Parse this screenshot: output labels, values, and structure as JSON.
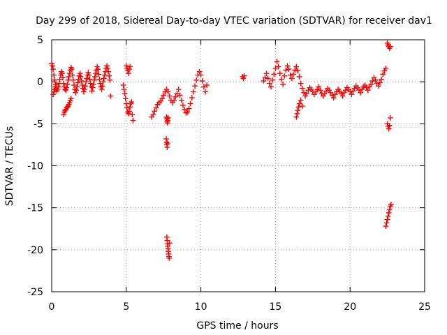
{
  "chart_data": {
    "type": "scatter",
    "title": "Day 299 of 2018, Sidereal Day-to-day VTEC variation (SDTVAR) for receiver dav1",
    "xlabel": "GPS time / hours",
    "ylabel": "SDTVAR / TECUs",
    "xlim": [
      0,
      25
    ],
    "ylim": [
      -25,
      5
    ],
    "x_ticks": [
      "0",
      "5",
      "10",
      "15",
      "20",
      "25"
    ],
    "y_ticks": [
      "5",
      "0",
      "-5",
      "-10",
      "-15",
      "-20",
      "-25"
    ],
    "grid": true,
    "legend": "none",
    "marker": "+",
    "series_color": "#ff0000",
    "series": [
      {
        "name": "SDTVAR",
        "x": [
          0.0,
          0.05,
          0.1,
          0.15,
          0.2,
          0.25,
          0.3,
          0.35,
          0.4,
          0.45,
          0.5,
          0.55,
          0.6,
          0.65,
          0.7,
          0.75,
          0.8,
          0.85,
          0.9,
          0.95,
          1.0,
          1.05,
          1.1,
          1.15,
          1.2,
          1.25,
          1.3,
          1.35,
          1.4,
          1.45,
          1.5,
          1.55,
          1.6,
          1.65,
          1.7,
          1.75,
          1.8,
          1.85,
          1.9,
          1.95,
          2.0,
          2.05,
          2.1,
          2.15,
          2.2,
          2.25,
          2.3,
          2.35,
          2.4,
          2.45,
          2.5,
          2.55,
          2.6,
          2.65,
          2.7,
          2.75,
          2.8,
          2.85,
          2.9,
          2.95,
          3.0,
          3.05,
          3.1,
          3.15,
          3.2,
          3.25,
          3.3,
          3.35,
          3.4,
          3.45,
          3.5,
          3.55,
          3.6,
          3.65,
          3.7,
          3.75,
          3.8,
          3.85,
          3.9,
          3.95,
          0.1,
          0.15,
          0.2,
          0.25,
          0.3,
          0.8,
          0.85,
          0.9,
          0.95,
          1.0,
          1.05,
          1.1,
          1.15,
          1.2,
          1.25,
          1.3,
          4.8,
          4.85,
          4.9,
          4.95,
          5.0,
          5.05,
          5.1,
          5.15,
          5.2,
          5.25,
          5.3,
          5.35,
          5.4,
          5.45,
          5.0,
          5.05,
          5.1,
          5.15,
          5.2,
          5.25,
          6.7,
          6.8,
          6.9,
          7.0,
          7.1,
          7.2,
          7.3,
          7.4,
          7.5,
          7.6,
          7.7,
          7.8,
          7.9,
          8.0,
          8.1,
          8.2,
          8.3,
          8.4,
          8.5,
          8.6,
          8.7,
          8.8,
          8.9,
          9.0,
          9.1,
          9.2,
          9.3,
          9.4,
          9.5,
          9.6,
          9.7,
          9.8,
          9.9,
          10.0,
          10.1,
          10.2,
          10.3,
          10.4,
          7.7,
          7.72,
          7.74,
          7.76,
          7.78,
          7.8,
          7.68,
          7.7,
          7.72,
          7.74,
          7.76,
          7.72,
          7.74,
          7.76,
          7.78,
          7.8,
          7.82,
          7.84,
          7.86,
          7.88,
          7.9,
          12.8,
          12.85,
          12.9,
          14.2,
          14.3,
          14.4,
          14.5,
          14.6,
          14.7,
          14.8,
          14.9,
          15.0,
          15.1,
          15.2,
          15.3,
          15.4,
          15.5,
          15.6,
          15.7,
          15.8,
          15.9,
          16.0,
          16.1,
          16.2,
          16.3,
          16.4,
          16.5,
          16.6,
          16.7,
          16.8,
          16.9,
          17.0,
          17.1,
          17.2,
          17.3,
          17.4,
          17.5,
          17.6,
          17.7,
          17.8,
          17.9,
          18.0,
          18.1,
          18.2,
          18.3,
          18.4,
          18.5,
          18.6,
          18.7,
          18.8,
          18.9,
          19.0,
          19.1,
          19.2,
          19.3,
          19.4,
          19.5,
          19.6,
          19.7,
          19.8,
          19.9,
          20.0,
          20.1,
          20.2,
          20.3,
          20.4,
          20.5,
          20.6,
          20.7,
          20.8,
          20.9,
          21.0,
          21.1,
          21.2,
          21.3,
          21.4,
          21.5,
          21.6,
          21.7,
          21.8,
          21.9,
          22.0,
          22.1,
          22.2,
          22.3,
          22.4,
          16.4,
          16.45,
          16.5,
          16.55,
          16.6,
          16.7,
          16.8,
          22.5,
          22.55,
          22.6,
          22.65,
          22.7,
          22.5,
          22.55,
          22.6,
          22.65,
          22.7,
          22.4,
          22.45,
          22.5,
          22.55,
          22.6,
          22.65,
          22.7,
          22.75
        ],
        "y": [
          2.2,
          1.9,
          1.5,
          0.8,
          0.2,
          -0.3,
          -0.8,
          -1.1,
          -0.9,
          -0.6,
          -0.2,
          0.3,
          0.8,
          1.2,
          1.0,
          0.5,
          -0.2,
          -0.6,
          -0.9,
          -1.0,
          -0.7,
          -0.3,
          0.2,
          0.6,
          1.0,
          1.4,
          1.7,
          1.5,
          0.8,
          0.2,
          -0.4,
          -0.9,
          -1.3,
          -1.0,
          -0.6,
          -0.1,
          0.3,
          0.7,
          1.0,
          0.6,
          0.1,
          -0.4,
          -0.8,
          -1.2,
          -0.9,
          -0.5,
          0.0,
          0.4,
          0.8,
          1.1,
          0.8,
          0.3,
          -0.2,
          -0.6,
          -1.1,
          -0.7,
          -0.3,
          0.2,
          0.6,
          1.0,
          1.4,
          1.8,
          1.5,
          0.9,
          0.3,
          -0.2,
          -0.6,
          -0.9,
          -0.5,
          0.0,
          0.4,
          0.8,
          1.2,
          1.6,
          1.9,
          1.6,
          1.2,
          0.7,
          0.2,
          -1.7,
          -1.5,
          -1.2,
          -0.9,
          -0.6,
          -0.3,
          -3.9,
          -3.6,
          -3.4,
          -3.3,
          -3.1,
          -3.0,
          -2.9,
          -2.7,
          -2.5,
          -2.2,
          -2.0,
          -0.4,
          -0.9,
          -1.4,
          -2.0,
          -2.6,
          -3.1,
          -3.6,
          -3.8,
          -3.5,
          -3.0,
          -2.6,
          -2.4,
          -3.9,
          -4.6,
          1.9,
          1.6,
          1.3,
          1.0,
          1.5,
          1.8,
          -4.2,
          -3.9,
          -3.5,
          -3.1,
          -2.7,
          -2.5,
          -2.3,
          -2.0,
          -1.6,
          -1.2,
          -0.9,
          -1.2,
          -1.7,
          -2.2,
          -2.5,
          -2.2,
          -1.8,
          -1.4,
          -0.9,
          -1.6,
          -2.2,
          -2.8,
          -3.3,
          -3.7,
          -3.6,
          -3.2,
          -2.6,
          -1.9,
          -1.2,
          -0.5,
          0.2,
          0.8,
          1.2,
          0.8,
          0.1,
          -0.6,
          -1.2,
          -0.4,
          -4.2,
          -4.4,
          -4.7,
          -4.9,
          -4.6,
          -4.3,
          -6.8,
          -7.2,
          -7.5,
          -7.8,
          -7.3,
          -18.5,
          -18.9,
          -19.3,
          -19.6,
          -19.9,
          -20.2,
          -20.5,
          -20.8,
          -21.0,
          -19.2,
          0.6,
          0.4,
          0.7,
          0.1,
          0.5,
          1.0,
          0.4,
          -0.2,
          -0.6,
          0.2,
          0.9,
          1.6,
          2.4,
          1.8,
          1.0,
          0.3,
          -0.3,
          0.7,
          1.4,
          1.9,
          1.5,
          0.8,
          0.4,
          0.9,
          1.4,
          1.8,
          1.3,
          0.6,
          -0.2,
          -0.8,
          -1.3,
          -1.7,
          -1.4,
          -1.0,
          -0.7,
          -0.9,
          -1.2,
          -1.5,
          -1.2,
          -0.9,
          -0.6,
          -1.0,
          -1.4,
          -1.7,
          -1.4,
          -1.1,
          -0.8,
          -1.0,
          -1.3,
          -1.6,
          -1.9,
          -1.5,
          -1.2,
          -0.9,
          -1.1,
          -1.4,
          -1.7,
          -1.3,
          -1.0,
          -0.7,
          -0.9,
          -1.2,
          -1.5,
          -1.1,
          -0.8,
          -0.5,
          -0.7,
          -1.0,
          -1.3,
          -0.9,
          -0.6,
          -0.4,
          -0.7,
          -1.0,
          -0.6,
          -0.3,
          0.1,
          0.5,
          0.2,
          -0.2,
          -0.5,
          -0.1,
          0.3,
          0.9,
          1.3,
          1.6,
          -4.2,
          -3.8,
          -3.4,
          -3.0,
          -2.6,
          -2.2,
          -2.9,
          4.6,
          4.4,
          4.2,
          4.0,
          4.2,
          -5.0,
          -5.3,
          -5.6,
          -5.2,
          -4.3,
          -17.2,
          -16.8,
          -16.4,
          -16.0,
          -15.6,
          -15.2,
          -14.8,
          -14.6
        ]
      }
    ]
  }
}
